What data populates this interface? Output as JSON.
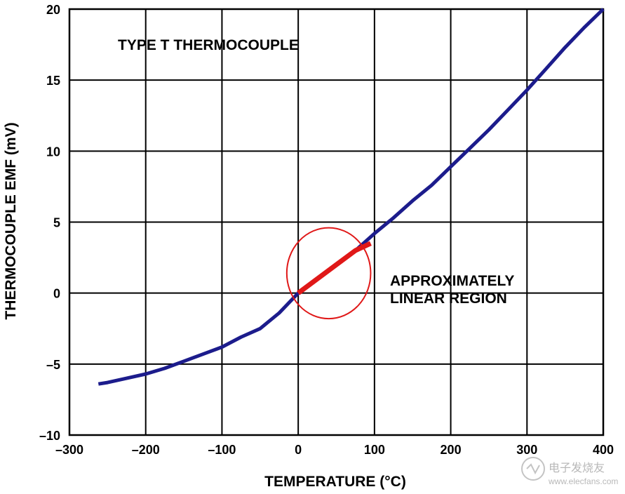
{
  "chart_data": {
    "type": "line",
    "title": "TYPE T THERMOCOUPLE",
    "xlabel": "TEMPERATURE (°C)",
    "ylabel": "THERMOCOUPLE EMF (mV)",
    "xlim": [
      -300,
      400
    ],
    "ylim": [
      -10,
      20
    ],
    "x_ticks": [
      -300,
      -200,
      -100,
      0,
      100,
      200,
      300,
      400
    ],
    "x_tick_labels": [
      "–300",
      "–200",
      "–100",
      "0",
      "100",
      "200",
      "300",
      "400"
    ],
    "y_ticks": [
      -10,
      -5,
      0,
      5,
      10,
      15,
      20
    ],
    "y_tick_labels": [
      "–10",
      "–5",
      "0",
      "5",
      "10",
      "15",
      "20"
    ],
    "grid": true,
    "series": [
      {
        "color": "#1c1c8c",
        "x": [
          -262,
          -250,
          -225,
          -200,
          -175,
          -150,
          -125,
          -100,
          -75,
          -50,
          -25,
          0,
          25,
          50,
          75,
          100,
          125,
          150,
          175,
          200,
          225,
          250,
          275,
          300,
          325,
          350,
          375,
          400
        ],
        "y": [
          -6.4,
          -6.3,
          -6.0,
          -5.7,
          -5.3,
          -4.8,
          -4.3,
          -3.8,
          -3.1,
          -2.5,
          -1.4,
          0.0,
          1.0,
          2.0,
          3.0,
          4.2,
          5.3,
          6.5,
          7.6,
          8.9,
          10.2,
          11.5,
          12.9,
          14.3,
          15.8,
          17.3,
          18.7,
          20.0
        ]
      },
      {
        "color": "#e01818",
        "x": [
          0,
          25,
          50,
          75,
          95
        ],
        "y": [
          0.0,
          1.0,
          2.0,
          3.0,
          3.5
        ]
      }
    ],
    "annotations": [
      {
        "text_lines": [
          "APPROXIMATELY",
          "LINEAR REGION"
        ]
      }
    ],
    "highlight_ellipse": {
      "center": [
        40,
        1.4
      ],
      "radius_x": 55,
      "radius_y": 3.2,
      "color": "#e01818"
    }
  },
  "watermark": {
    "text_cn": "电子发烧友",
    "url": "www.elecfans.com"
  }
}
